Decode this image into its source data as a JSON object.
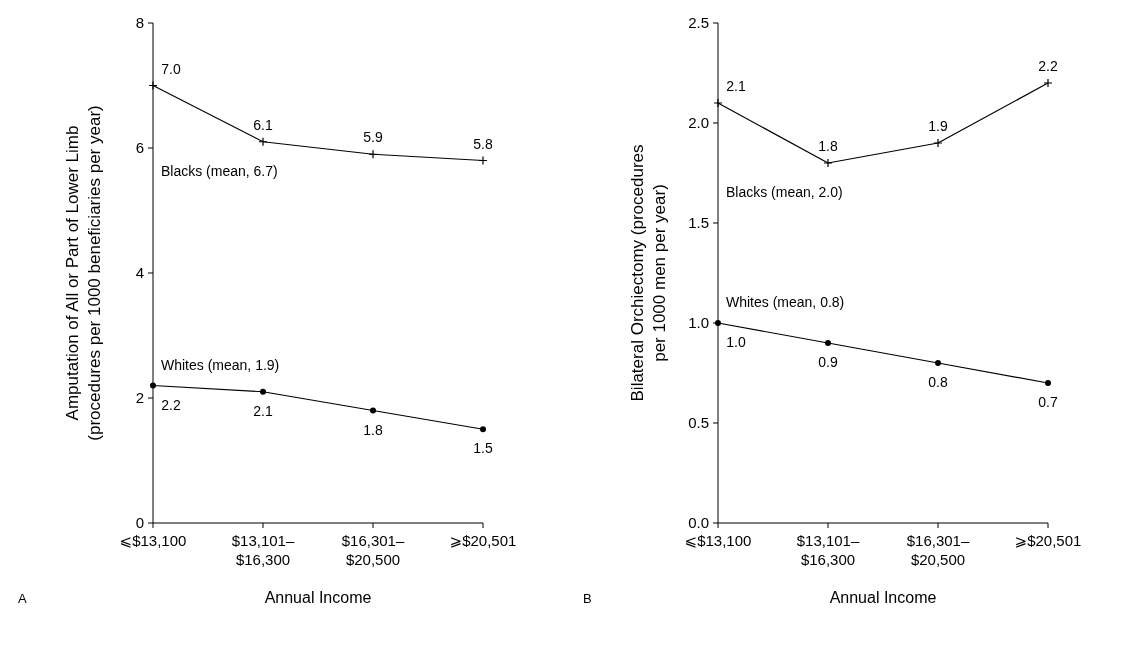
{
  "chart_data": [
    {
      "type": "line",
      "categories": [
        "⩽$13,100",
        "$13,101–\n$16,300",
        "$16,301–\n$20,500",
        "⩾$20,501"
      ],
      "xlabel": "Annual Income",
      "ylabel": "Amputation of All or Part of Lower Limb\n(procedures per 1000 beneficiaries per year)",
      "ylim": [
        0,
        8
      ],
      "yticks": [
        0,
        2,
        4,
        6,
        8
      ],
      "grid": false,
      "annotations": [
        "A"
      ],
      "series": [
        {
          "name": "Blacks (mean, 6.7)",
          "color": "#000000",
          "marker": "cross",
          "values": [
            7.0,
            6.1,
            5.9,
            5.8
          ],
          "value_labels": [
            "7.0",
            "6.1",
            "5.9",
            "5.8"
          ]
        },
        {
          "name": "Whites (mean, 1.9)",
          "color": "#000000",
          "marker": "circle",
          "values": [
            2.2,
            2.1,
            1.8,
            1.5
          ],
          "value_labels": [
            "2.2",
            "2.1",
            "1.8",
            "1.5"
          ]
        }
      ]
    },
    {
      "type": "line",
      "categories": [
        "⩽$13,100",
        "$13,101–\n$16,300",
        "$16,301–\n$20,500",
        "⩾$20,501"
      ],
      "xlabel": "Annual Income",
      "ylabel": "Bilateral Orchiectomy (procedures\nper 1000 men per year)",
      "ylim": [
        0,
        2.5
      ],
      "yticks": [
        {
          "value": 0,
          "label": "0.0"
        },
        {
          "value": 0.5,
          "label": "0.5"
        },
        {
          "value": 1,
          "label": "1.0"
        },
        {
          "value": 1.5,
          "label": "1.5"
        },
        {
          "value": 2,
          "label": "2.0"
        },
        {
          "value": 2.5,
          "label": "2.5"
        }
      ],
      "grid": false,
      "annotations": [
        "B"
      ],
      "series": [
        {
          "name": "Blacks (mean, 2.0)",
          "color": "#000000",
          "marker": "cross",
          "values": [
            2.1,
            1.8,
            1.9,
            2.2
          ],
          "value_labels": [
            "2.1",
            "1.8",
            "1.9",
            "2.2"
          ]
        },
        {
          "name": "Whites (mean, 0.8)",
          "color": "#000000",
          "marker": "circle",
          "values": [
            1.0,
            0.9,
            0.8,
            0.7
          ],
          "value_labels": [
            "1.0",
            "0.9",
            "0.8",
            "0.7"
          ]
        }
      ]
    }
  ]
}
